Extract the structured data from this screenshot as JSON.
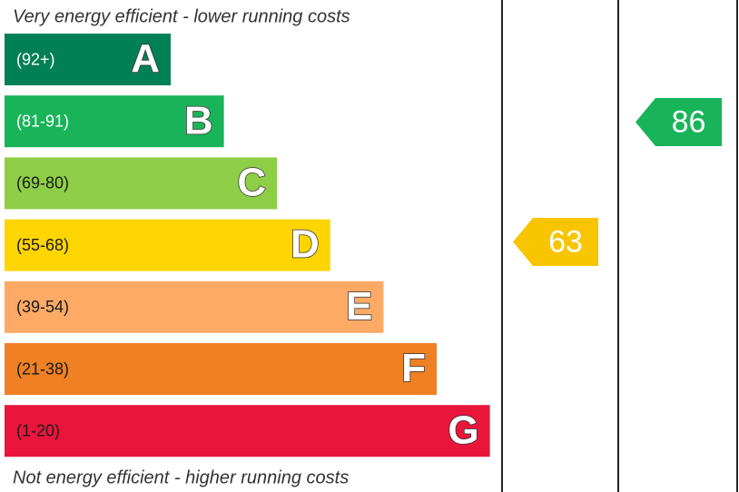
{
  "header": {
    "top_note": "Very energy efficient - lower running costs",
    "bottom_note": "Not energy efficient - higher running costs"
  },
  "bands": [
    {
      "range": "(92+)",
      "letter": "A",
      "color": "#008054",
      "text_color": "#ffffff"
    },
    {
      "range": "(81-91)",
      "letter": "B",
      "color": "#19b459",
      "text_color": "#ffffff"
    },
    {
      "range": "(69-80)",
      "letter": "C",
      "color": "#8dce46",
      "text_color": "#1a1a1a"
    },
    {
      "range": "(55-68)",
      "letter": "D",
      "color": "#ffd500",
      "text_color": "#1a1a1a"
    },
    {
      "range": "(39-54)",
      "letter": "E",
      "color": "#fcaa65",
      "text_color": "#1a1a1a"
    },
    {
      "range": "(21-38)",
      "letter": "F",
      "color": "#ef8023",
      "text_color": "#1a1a1a"
    },
    {
      "range": "(1-20)",
      "letter": "G",
      "color": "#e9153b",
      "text_color": "#1a1a1a"
    }
  ],
  "ratings": [
    {
      "value": 63,
      "color": "#f8c500"
    },
    {
      "value": 86,
      "color": "#19b459"
    }
  ]
}
